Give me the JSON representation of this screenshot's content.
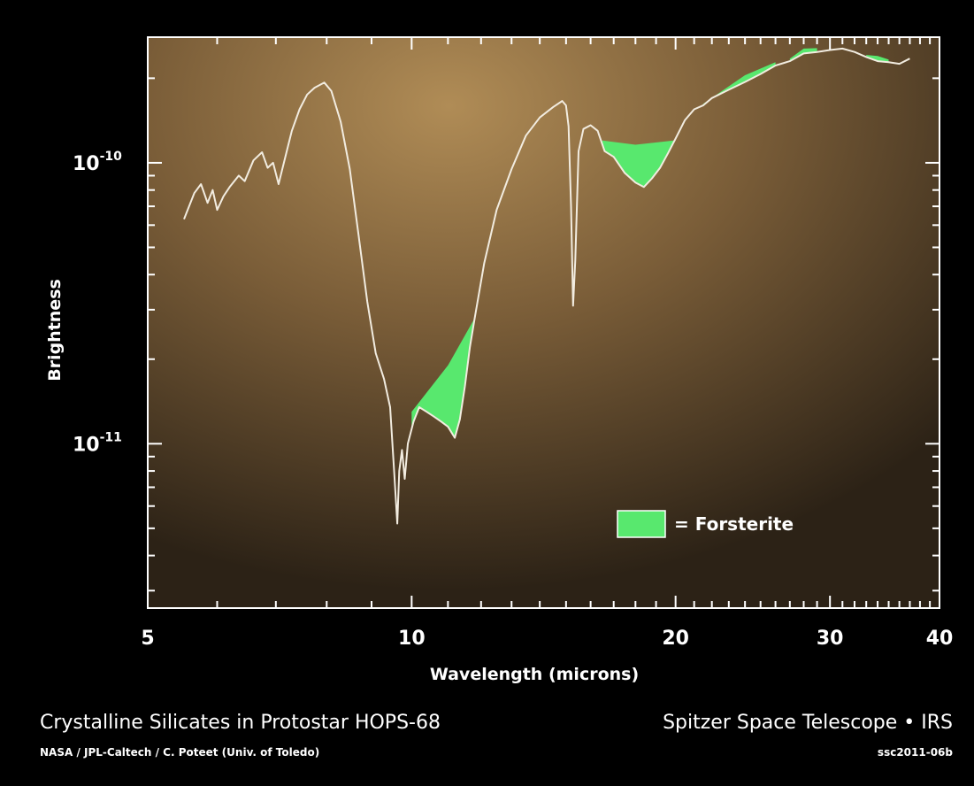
{
  "chart_data": {
    "type": "line",
    "title": "Crystalline Silicates in Protostar HOPS-68",
    "xlabel": "Wavelength (microns)",
    "ylabel": "Brightness",
    "xscale": "log",
    "yscale": "log",
    "xlim": [
      5,
      40
    ],
    "ylim": [
      2.6e-12,
      2.8e-10
    ],
    "x_ticks": [
      {
        "value": 5,
        "label": "5"
      },
      {
        "value": 10,
        "label": "10"
      },
      {
        "value": 20,
        "label": "20"
      },
      {
        "value": 30,
        "label": "30"
      },
      {
        "value": 40,
        "label": "40"
      }
    ],
    "y_ticks": [
      {
        "value": 1e-10,
        "label": "10",
        "exp": "-10"
      },
      {
        "value": 1e-11,
        "label": "10",
        "exp": "-11"
      }
    ],
    "grid": false,
    "series": [
      {
        "color": "#f2ece0",
        "points": [
          [
            5.5,
            6.3e-11
          ],
          [
            5.65,
            7.8e-11
          ],
          [
            5.75,
            8.4e-11
          ],
          [
            5.85,
            7.2e-11
          ],
          [
            5.93,
            8e-11
          ],
          [
            6.0,
            6.8e-11
          ],
          [
            6.1,
            7.6e-11
          ],
          [
            6.2,
            8.2e-11
          ],
          [
            6.35,
            9e-11
          ],
          [
            6.45,
            8.6e-11
          ],
          [
            6.6,
            1.02e-10
          ],
          [
            6.75,
            1.09e-10
          ],
          [
            6.85,
            9.6e-11
          ],
          [
            6.95,
            1e-10
          ],
          [
            7.05,
            8.4e-11
          ],
          [
            7.15,
            1e-10
          ],
          [
            7.3,
            1.3e-10
          ],
          [
            7.45,
            1.55e-10
          ],
          [
            7.6,
            1.75e-10
          ],
          [
            7.75,
            1.85e-10
          ],
          [
            7.95,
            1.93e-10
          ],
          [
            8.1,
            1.8e-10
          ],
          [
            8.3,
            1.4e-10
          ],
          [
            8.5,
            9.5e-11
          ],
          [
            8.7,
            5.5e-11
          ],
          [
            8.9,
            3.2e-11
          ],
          [
            9.1,
            2.1e-11
          ],
          [
            9.3,
            1.7e-11
          ],
          [
            9.45,
            1.35e-11
          ],
          [
            9.55,
            8e-12
          ],
          [
            9.63,
            5.2e-12
          ],
          [
            9.68,
            8e-12
          ],
          [
            9.75,
            9.5e-12
          ],
          [
            9.82,
            7.5e-12
          ],
          [
            9.9,
            1e-11
          ],
          [
            10.05,
            1.2e-11
          ],
          [
            10.2,
            1.35e-11
          ],
          [
            10.4,
            1.3e-11
          ],
          [
            10.6,
            1.25e-11
          ],
          [
            10.8,
            1.2e-11
          ],
          [
            11.0,
            1.15e-11
          ],
          [
            11.2,
            1.05e-11
          ],
          [
            11.35,
            1.22e-11
          ],
          [
            11.5,
            1.6e-11
          ],
          [
            11.65,
            2.2e-11
          ],
          [
            11.8,
            2.8e-11
          ],
          [
            12.1,
            4.4e-11
          ],
          [
            12.5,
            6.8e-11
          ],
          [
            13.0,
            9.5e-11
          ],
          [
            13.5,
            1.25e-10
          ],
          [
            14.0,
            1.45e-10
          ],
          [
            14.5,
            1.58e-10
          ],
          [
            14.85,
            1.66e-10
          ],
          [
            15.0,
            1.6e-10
          ],
          [
            15.1,
            1.35e-10
          ],
          [
            15.2,
            7e-11
          ],
          [
            15.28,
            3.1e-11
          ],
          [
            15.37,
            4.5e-11
          ],
          [
            15.5,
            1.1e-10
          ],
          [
            15.7,
            1.32e-10
          ],
          [
            16.0,
            1.36e-10
          ],
          [
            16.3,
            1.3e-10
          ],
          [
            16.6,
            1.1e-10
          ],
          [
            17.0,
            1.05e-10
          ],
          [
            17.5,
            9.2e-11
          ],
          [
            18.0,
            8.5e-11
          ],
          [
            18.4,
            8.2e-11
          ],
          [
            18.8,
            8.8e-11
          ],
          [
            19.2,
            9.6e-11
          ],
          [
            19.6,
            1.08e-10
          ],
          [
            20.0,
            1.22e-10
          ],
          [
            20.5,
            1.42e-10
          ],
          [
            21.0,
            1.55e-10
          ],
          [
            21.5,
            1.6e-10
          ],
          [
            22.0,
            1.7e-10
          ],
          [
            23.0,
            1.82e-10
          ],
          [
            24.0,
            1.94e-10
          ],
          [
            25.0,
            2.07e-10
          ],
          [
            26.0,
            2.22e-10
          ],
          [
            27.0,
            2.3e-10
          ],
          [
            28.0,
            2.45e-10
          ],
          [
            29.0,
            2.48e-10
          ],
          [
            30.0,
            2.52e-10
          ],
          [
            31.0,
            2.55e-10
          ],
          [
            32.0,
            2.48e-10
          ],
          [
            33.0,
            2.38e-10
          ],
          [
            34.0,
            2.3e-10
          ],
          [
            35.0,
            2.28e-10
          ],
          [
            36.0,
            2.25e-10
          ],
          [
            37.0,
            2.35e-10
          ]
        ]
      }
    ],
    "filled_regions": [
      {
        "name": "Forsterite",
        "color": "#58e86e",
        "x_range": [
          10.0,
          11.8
        ],
        "upper": [
          [
            10.0,
            1.3e-11
          ],
          [
            11.0,
            1.9e-11
          ],
          [
            11.8,
            2.8e-11
          ]
        ]
      },
      {
        "name": "Forsterite",
        "color": "#58e86e",
        "x_range": [
          16.5,
          19.9
        ],
        "upper": [
          [
            16.5,
            1.2e-10
          ],
          [
            18.0,
            1.16e-10
          ],
          [
            19.9,
            1.2e-10
          ]
        ]
      },
      {
        "name": "Forsterite",
        "color": "#58e86e",
        "x_range": [
          21.5,
          26.0
        ],
        "upper": [
          [
            21.5,
            1.62e-10
          ],
          [
            24.0,
            2.05e-10
          ],
          [
            26.0,
            2.28e-10
          ]
        ]
      },
      {
        "name": "Forsterite",
        "color": "#58e86e",
        "x_range": [
          27.0,
          29.0
        ],
        "upper": [
          [
            27.0,
            2.35e-10
          ],
          [
            28.0,
            2.55e-10
          ],
          [
            29.0,
            2.56e-10
          ]
        ]
      },
      {
        "name": "Forsterite",
        "color": "#58e86e",
        "x_range": [
          33.0,
          35.0
        ],
        "upper": [
          [
            33.0,
            2.42e-10
          ],
          [
            34.0,
            2.4e-10
          ],
          [
            35.0,
            2.33e-10
          ]
        ]
      }
    ],
    "legend": {
      "label": "= Forsterite",
      "color": "#58e86e",
      "placement": "lower-right"
    }
  },
  "footer": {
    "title": "Crystalline Silicates in Protostar HOPS-68",
    "credit": "NASA / JPL-Caltech / C. Poteet (Univ. of Toledo)",
    "mission": "Spitzer Space Telescope • IRS",
    "image_id": "ssc2011-06b"
  }
}
